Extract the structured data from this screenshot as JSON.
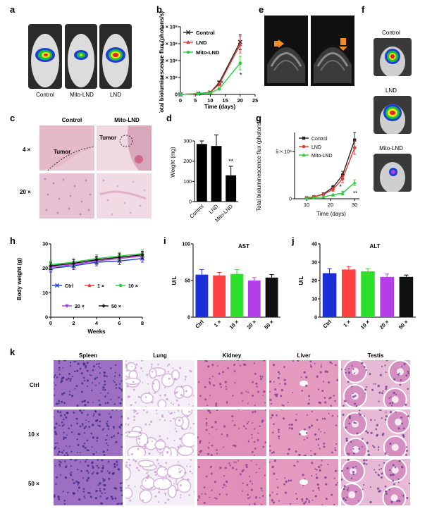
{
  "panels": {
    "a": "a",
    "b": "b",
    "c": "c",
    "d": "d",
    "e": "e",
    "f": "f",
    "g": "g",
    "h": "h",
    "i": "i",
    "j": "j",
    "k": "k"
  },
  "panel_a": {
    "labels": [
      "Control",
      "Mito-LND",
      "LND"
    ]
  },
  "panel_c": {
    "cols": [
      "Control",
      "Mito-LND"
    ],
    "rows": [
      "4 ×",
      "20 ×"
    ],
    "tumor": "Tumor"
  },
  "panel_f": {
    "labels": [
      "Control",
      "LND",
      "Mito-LND"
    ]
  },
  "panel_k": {
    "cols": [
      "Spleen",
      "Lung",
      "Kidney",
      "Liver",
      "Testis"
    ],
    "rows": [
      "Ctrl",
      "10 ×",
      "50 ×"
    ]
  },
  "chart_data": [
    {
      "id": "b",
      "type": "line",
      "xlabel": "Time (days)",
      "ylabel": "Total bioluminescence flux (photons/s)",
      "xlim": [
        0,
        25
      ],
      "ylim": [
        0,
        4000000000
      ],
      "xticks": [
        0,
        5,
        10,
        15,
        20,
        25
      ],
      "yticks": [
        "0",
        "1 × 10⁹",
        "2 × 10⁹",
        "3 × 10⁹",
        "4 × 10⁹"
      ],
      "x": [
        0,
        6,
        10,
        13,
        20
      ],
      "series": [
        {
          "name": "Control",
          "color": "#222222",
          "marker": "x",
          "values": [
            0,
            50000000,
            120000000,
            700000000,
            3100000000
          ],
          "err": [
            0,
            0,
            0,
            100000000,
            450000000
          ]
        },
        {
          "name": "LND",
          "color": "#e53935",
          "marker": "tri",
          "values": [
            0,
            50000000,
            120000000,
            600000000,
            2950000000
          ],
          "err": [
            0,
            0,
            0,
            100000000,
            500000000
          ]
        },
        {
          "name": "Mito-LND",
          "color": "#2ecc40",
          "marker": "circ",
          "values": [
            0,
            40000000,
            90000000,
            330000000,
            1850000000
          ],
          "err": [
            0,
            0,
            0,
            80000000,
            400000000
          ]
        }
      ],
      "annotations": [
        "*",
        "*"
      ]
    },
    {
      "id": "d",
      "type": "bar",
      "ylabel": "Weight (mg)",
      "ylim": [
        0,
        300
      ],
      "yticks": [
        0,
        100,
        200,
        300
      ],
      "categories": [
        "Control",
        "LND",
        "Mito-LND"
      ],
      "values": [
        285,
        275,
        130
      ],
      "err": [
        15,
        55,
        45
      ],
      "annotations": [
        "",
        "",
        "**"
      ]
    },
    {
      "id": "g",
      "type": "line",
      "xlabel": "Time (days)",
      "ylabel": "Total bioluminescence flux (photons/s)",
      "xlim": [
        5,
        32
      ],
      "ylim": [
        0,
        700000000
      ],
      "xticks": [
        10,
        20,
        30
      ],
      "yticks": [
        "0",
        "5 × 10⁸"
      ],
      "x": [
        10,
        13,
        17,
        21,
        25,
        30
      ],
      "series": [
        {
          "name": "Control",
          "color": "#222222",
          "marker": "sq",
          "values": [
            10000000,
            20000000,
            50000000,
            120000000,
            250000000,
            620000000
          ],
          "err": [
            0,
            0,
            0,
            20000000,
            40000000,
            80000000
          ]
        },
        {
          "name": "LND",
          "color": "#e53935",
          "marker": "circ",
          "values": [
            10000000,
            20000000,
            45000000,
            100000000,
            210000000,
            540000000
          ],
          "err": [
            0,
            0,
            0,
            20000000,
            40000000,
            70000000
          ]
        },
        {
          "name": "Mito-LND",
          "color": "#2ecc40",
          "marker": "tri",
          "values": [
            5000000,
            10000000,
            20000000,
            40000000,
            60000000,
            170000000
          ],
          "err": [
            0,
            0,
            0,
            10000000,
            20000000,
            30000000
          ]
        }
      ],
      "annotations": [
        "*",
        "**"
      ]
    },
    {
      "id": "h",
      "type": "line",
      "xlabel": "Weeks",
      "ylabel": "Body weight (g)",
      "xlim": [
        0,
        8
      ],
      "ylim": [
        0,
        30
      ],
      "xticks": [
        0,
        2,
        4,
        6,
        8
      ],
      "yticks": [
        0,
        10,
        20,
        30
      ],
      "x": [
        0,
        2,
        4,
        6,
        8
      ],
      "series": [
        {
          "name": "Ctrl",
          "color": "#1a3ed1",
          "marker": "x",
          "values": [
            20,
            21,
            22.5,
            23,
            24
          ],
          "err": [
            1.5,
            1.5,
            1.5,
            1.5,
            1.5
          ]
        },
        {
          "name": "1 ×",
          "color": "#e53935",
          "marker": "tri",
          "values": [
            21,
            22,
            23.5,
            24.5,
            25.5
          ],
          "err": [
            1.5,
            1.5,
            1.5,
            1.5,
            1.5
          ]
        },
        {
          "name": "10 ×",
          "color": "#2ecc40",
          "marker": "circ",
          "values": [
            21.5,
            22.5,
            24,
            25,
            26
          ],
          "err": [
            1.5,
            1.5,
            1.5,
            1.5,
            1.5
          ]
        },
        {
          "name": "20 ×",
          "color": "#a23be6",
          "marker": "tridown",
          "values": [
            20.5,
            21.5,
            23,
            24,
            25
          ],
          "err": [
            1.5,
            1.5,
            1.5,
            1.5,
            1.5
          ]
        },
        {
          "name": "50 ×",
          "color": "#111111",
          "marker": "diamond",
          "values": [
            21,
            22,
            23.5,
            24.5,
            25.5
          ],
          "err": [
            1.5,
            1.5,
            1.5,
            1.5,
            1.5
          ]
        }
      ]
    },
    {
      "id": "i",
      "type": "bar",
      "title": "AST",
      "ylabel": "U/L",
      "ylim": [
        0,
        100
      ],
      "yticks": [
        0,
        50,
        100
      ],
      "categories": [
        "Ctrl",
        "1 ×",
        "10 ×",
        "20 ×",
        "50 ×"
      ],
      "colors": [
        "#1a2fd6",
        "#ff4040",
        "#2ee02e",
        "#b53fe6",
        "#111111"
      ],
      "values": [
        58,
        57,
        59,
        50,
        54
      ],
      "err": [
        7,
        4,
        6,
        4,
        4
      ]
    },
    {
      "id": "j",
      "type": "bar",
      "title": "ALT",
      "ylabel": "U/L",
      "ylim": [
        0,
        40
      ],
      "yticks": [
        0,
        10,
        20,
        30,
        40
      ],
      "categories": [
        "Ctrl",
        "1 ×",
        "10 ×",
        "20 ×",
        "50 ×"
      ],
      "colors": [
        "#1a2fd6",
        "#ff4040",
        "#2ee02e",
        "#b53fe6",
        "#111111"
      ],
      "values": [
        24,
        26,
        25,
        22,
        22
      ],
      "err": [
        2.5,
        1.5,
        1.5,
        1.5,
        1
      ]
    }
  ]
}
